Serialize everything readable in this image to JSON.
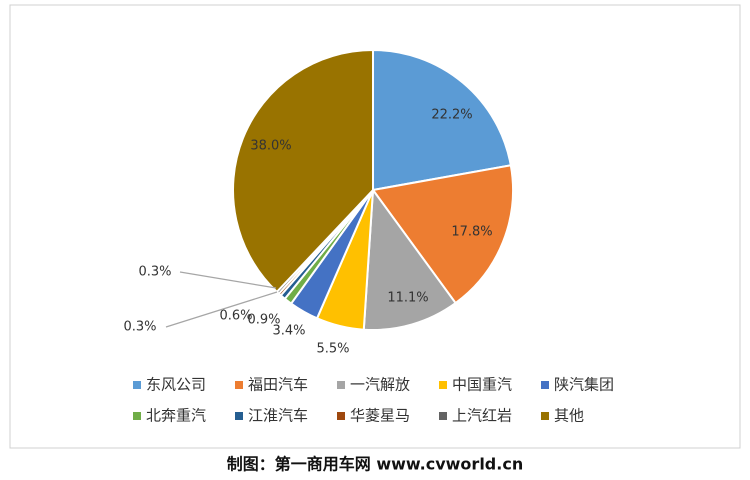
{
  "chart_data": {
    "type": "pie",
    "categories": [
      "东风公司",
      "福田汽车",
      "一汽解放",
      "中国重汽",
      "陕汽集团",
      "北奔重汽",
      "江淮汽车",
      "华菱星马",
      "上汽红岩",
      "其他"
    ],
    "values": [
      22.2,
      17.8,
      11.1,
      5.5,
      3.4,
      0.9,
      0.6,
      0.3,
      0.3,
      38.0
    ],
    "value_labels": [
      "22.2%",
      "17.8%",
      "11.1%",
      "5.5%",
      "3.4%",
      "0.9%",
      "0.6%",
      "0.3%",
      "0.3%",
      "38.0%"
    ],
    "colors": [
      "#5b9bd5",
      "#ed7d31",
      "#a5a5a5",
      "#ffc000",
      "#4472c4",
      "#70ad47",
      "#255e91",
      "#9e480e",
      "#636363",
      "#997300"
    ],
    "legend": "bottom",
    "source": "制图：第一商用车网 www.cvworld.cn"
  }
}
